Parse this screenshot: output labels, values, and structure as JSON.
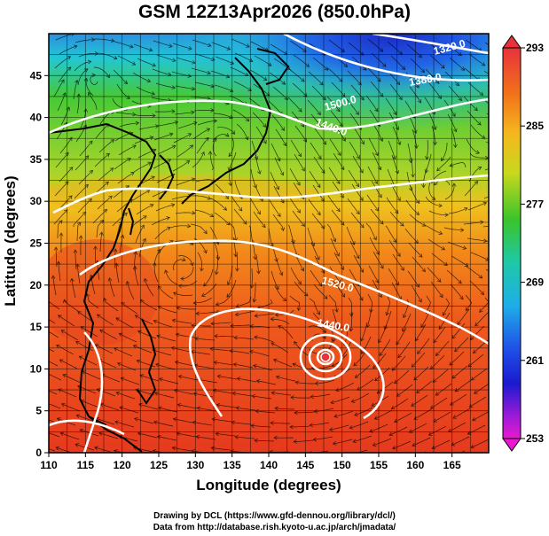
{
  "title": "GSM 12Z13Apr2026 (850.0hPa)",
  "xlabel": "Longitude (degrees)",
  "ylabel": "Latitude  (degrees)",
  "credits": [
    "Drawing by DCL (https://www.gfd-dennou.org/library/dcl/)",
    "Data from http://database.rish.kyoto-u.ac.jp/arch/jmadata/"
  ],
  "x_ticks": [
    110,
    115,
    120,
    125,
    130,
    135,
    140,
    145,
    150,
    155,
    160,
    165
  ],
  "y_ticks": [
    0,
    5,
    10,
    15,
    20,
    25,
    30,
    35,
    40,
    45
  ],
  "x_range": [
    110,
    170
  ],
  "y_range": [
    0,
    50
  ],
  "colorbar": {
    "labels": [
      "293",
      "285",
      "277",
      "269",
      "261",
      "253"
    ],
    "values": [
      293,
      285,
      277,
      269,
      261,
      253
    ]
  },
  "contour_labels": [
    "1320.0",
    "1380.0",
    "1440.0",
    "1500.0",
    "1520.0",
    "1440.0"
  ],
  "typhoon_center": {
    "lon": 147.3,
    "lat": 12.8
  },
  "colors": {
    "warm": "#e4321e",
    "hot": "#f0581a",
    "mid_orange": "#f58a1a",
    "yellow": "#f2d31e",
    "green": "#39c02a",
    "cyan": "#1ecad0",
    "blue": "#2460e8",
    "deep_blue": "#1a20c8",
    "contour": "#ffffff",
    "coast": "#000000"
  }
}
